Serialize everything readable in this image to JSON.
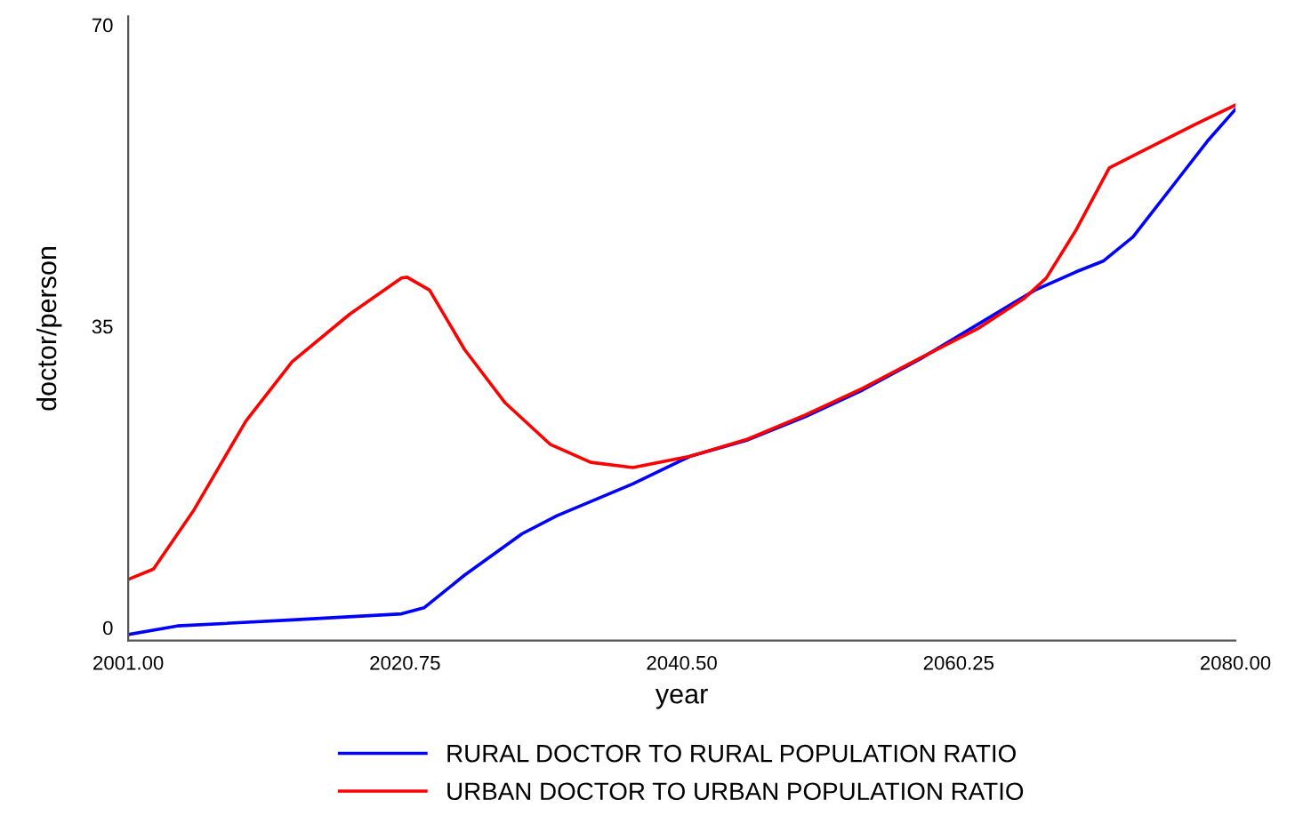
{
  "chart_data": {
    "type": "line",
    "xlabel": "year",
    "ylabel": "doctor/person",
    "xlim": [
      2001,
      2080
    ],
    "ylim": [
      -1.5,
      71
    ],
    "xticks": [
      {
        "value": 2001,
        "label": "2001.00"
      },
      {
        "value": 2020.75,
        "label": "2020.75"
      },
      {
        "value": 2040.5,
        "label": "2040.50"
      },
      {
        "value": 2060.25,
        "label": "2060.25"
      },
      {
        "value": 2080,
        "label": "2080.00"
      }
    ],
    "yticks": [
      0,
      35,
      70
    ],
    "grid": false,
    "legend": "bottom",
    "line_style": "solid",
    "series": [
      {
        "name": "RURAL DOCTOR TO RURAL POPULATION RATIO",
        "color": "#0000ff",
        "x": [
          2001,
          2004.5,
          2012.7,
          2020.5,
          2022.1,
          2025,
          2029.1,
          2031.6,
          2037,
          2041.1,
          2045.2,
          2049.3,
          2053.4,
          2057.5,
          2061.6,
          2065.7,
          2068.6,
          2070.6,
          2072.7,
          2076,
          2078,
          2080
        ],
        "values": [
          -0.8,
          0.2,
          0.9,
          1.6,
          2.3,
          6.1,
          10.9,
          13,
          16.7,
          19.9,
          21.8,
          24.5,
          27.6,
          31.2,
          35.2,
          39.2,
          41.3,
          42.6,
          45.4,
          52.3,
          56.5,
          60.2
        ]
      },
      {
        "name": "URBAN DOCTOR TO URBAN POPULATION RATIO",
        "color": "#ff0000",
        "x": [
          2001,
          2002.8,
          2005.7,
          2009.4,
          2012.7,
          2016.8,
          2020.5,
          2020.9,
          2022.5,
          2025,
          2027.9,
          2031.1,
          2034,
          2037,
          2041.1,
          2045.2,
          2049.3,
          2053.4,
          2057.5,
          2061.6,
          2064.9,
          2066.5,
          2068.6,
          2071,
          2073.9,
          2077.2,
          2080
        ],
        "values": [
          5.6,
          6.8,
          13.7,
          24,
          30.9,
          36.4,
          40.6,
          40.7,
          39.2,
          32.3,
          26.1,
          21.3,
          19.2,
          18.6,
          19.9,
          21.9,
          24.7,
          27.8,
          31.3,
          34.7,
          38.2,
          40.6,
          46.1,
          53.4,
          55.8,
          58.5,
          60.7
        ]
      }
    ]
  }
}
